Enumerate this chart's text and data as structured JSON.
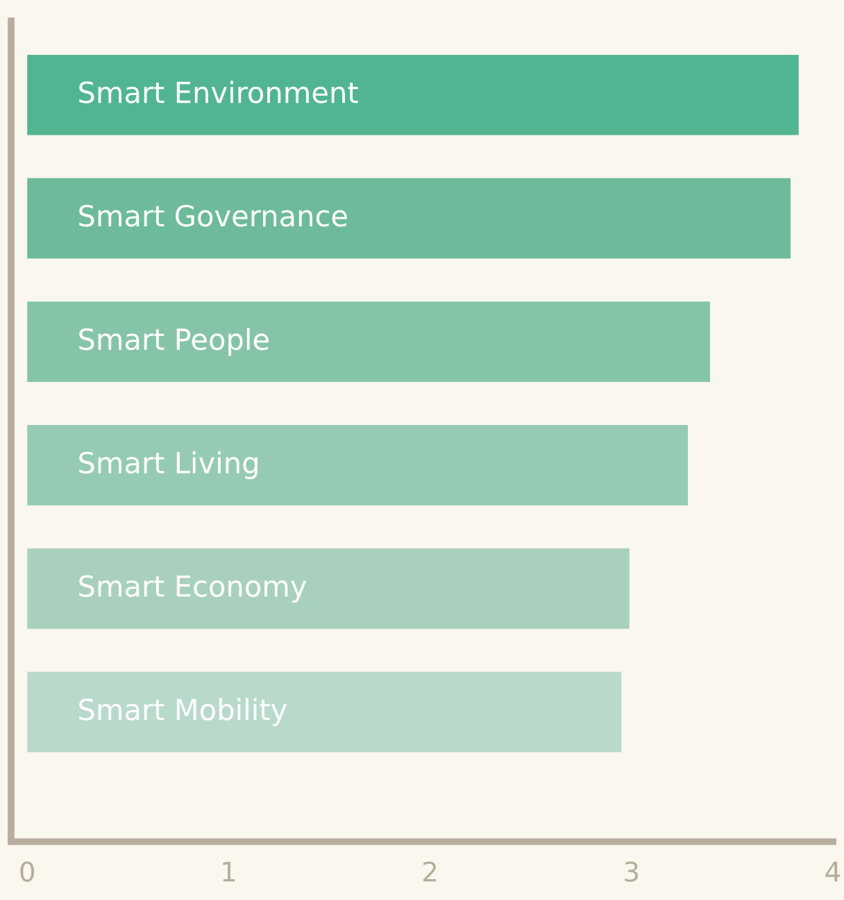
{
  "chart_data": {
    "type": "bar",
    "orientation": "horizontal",
    "categories": [
      "Smart Environment",
      "Smart Governance",
      "Smart People",
      "Smart Living",
      "Smart Economy",
      "Smart Mobility"
    ],
    "values": [
      3.83,
      3.79,
      3.39,
      3.28,
      2.99,
      2.95
    ],
    "colors": [
      "#52b592",
      "#6dbb9b",
      "#86c4a8",
      "#96cbb3",
      "#a8d0bd",
      "#b9dacb"
    ],
    "xlim": [
      -0.08,
      4.0
    ],
    "xticks": [
      0,
      1,
      2,
      3,
      4
    ],
    "grid": false,
    "legend": false
  }
}
